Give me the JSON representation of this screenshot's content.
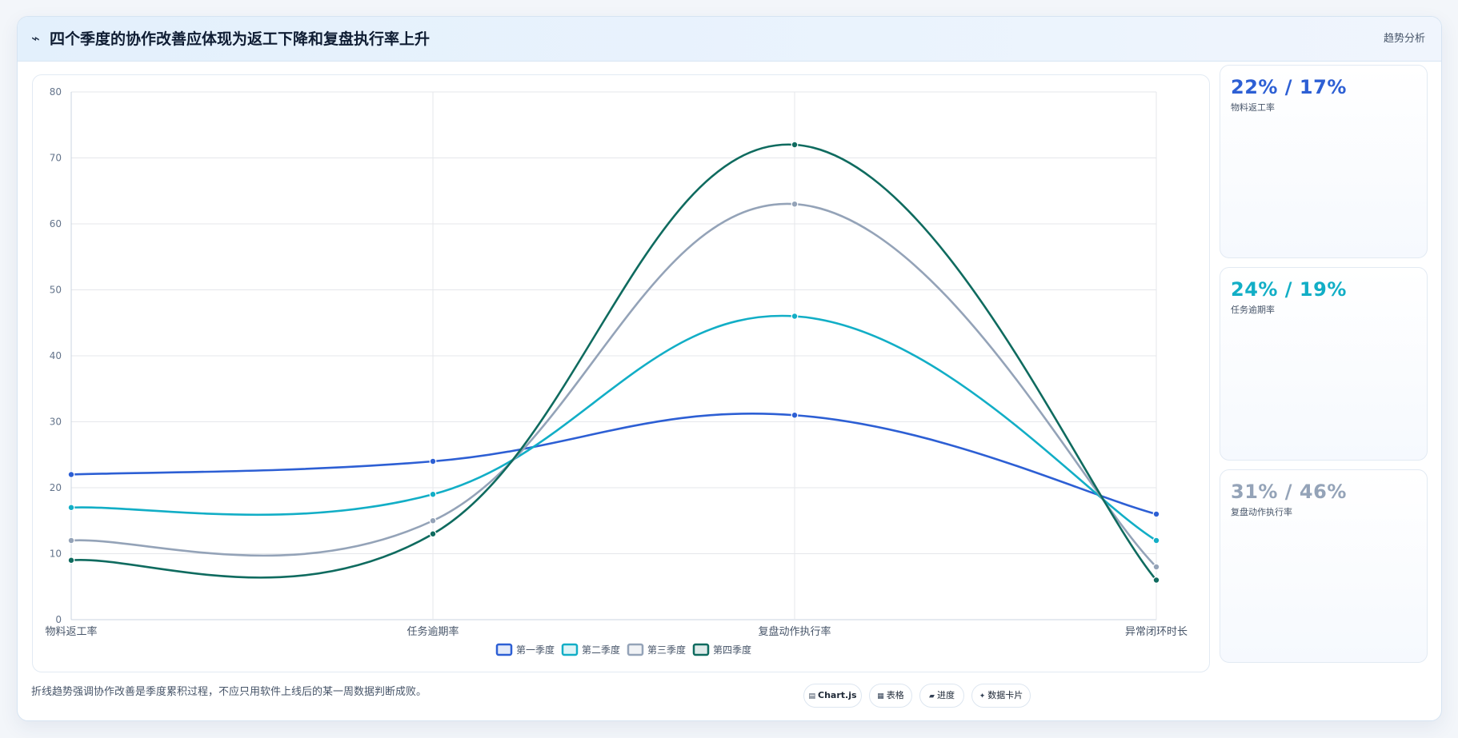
{
  "header": {
    "icon": "trend-icon",
    "title": "四个季度的协作改善应体现为返工下降和复盘执行率上升",
    "tag": "趋势分析"
  },
  "kpis": [
    {
      "value": "22% / 17%",
      "label": "物料返工率",
      "color": "#2d5fd4"
    },
    {
      "value": "24% / 19%",
      "label": "任务逾期率",
      "color": "#12aec6"
    },
    {
      "value": "31% / 46%",
      "label": "复盘动作执行率",
      "color": "#94a3b8"
    }
  ],
  "footnote": "折线趋势强调协作改善是季度累积过程，不应只用软件上线后的某一周数据判断成败。",
  "chips": [
    {
      "icon": "chart-icon",
      "label": "Chart.js"
    },
    {
      "icon": "table-icon",
      "label": "表格"
    },
    {
      "icon": "progress-icon",
      "label": "进度"
    },
    {
      "icon": "card-icon",
      "label": "数据卡片"
    }
  ],
  "chart_data": {
    "type": "line",
    "categories": [
      "物料返工率",
      "任务逾期率",
      "复盘动作执行率",
      "异常闭环时长"
    ],
    "series": [
      {
        "name": "第一季度",
        "values": [
          22,
          24,
          31,
          16
        ],
        "color": "#2d5fd4"
      },
      {
        "name": "第二季度",
        "values": [
          17,
          19,
          46,
          12
        ],
        "color": "#12aec6"
      },
      {
        "name": "第三季度",
        "values": [
          12,
          15,
          63,
          8
        ],
        "color": "#94a3b8"
      },
      {
        "name": "第四季度",
        "values": [
          9,
          13,
          72,
          6
        ],
        "color": "#0f6b5f"
      }
    ],
    "ylim": [
      0,
      80
    ],
    "yticks": [
      0,
      10,
      20,
      30,
      40,
      50,
      60,
      70,
      80
    ],
    "grid": true,
    "legend": "bottom-center",
    "smooth": true
  }
}
